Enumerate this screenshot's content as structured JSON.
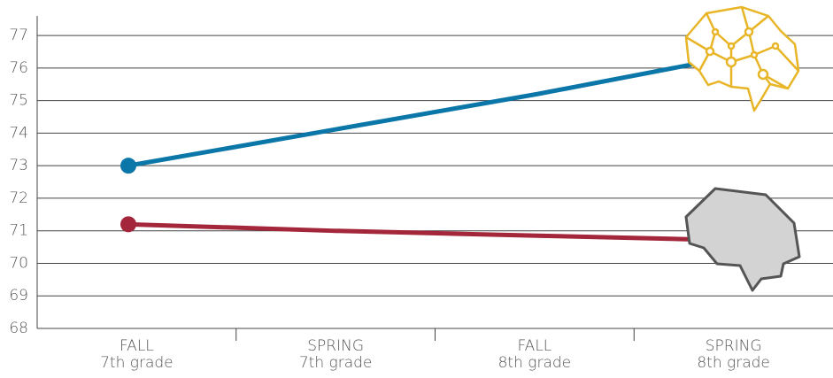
{
  "chart_data": {
    "type": "line",
    "categories": [
      [
        "FALL",
        "7th grade"
      ],
      [
        "SPRING",
        "7th grade"
      ],
      [
        "FALL",
        "8th grade"
      ],
      [
        "SPRING",
        "8th grade"
      ]
    ],
    "series": [
      {
        "color": "#0b76a8",
        "values": [
          73,
          74.1,
          75.2,
          76.4
        ]
      },
      {
        "color": "#a3263b",
        "values": [
          71.2,
          71.0,
          70.85,
          70.7
        ]
      }
    ],
    "ylim": [
      68,
      77.6
    ],
    "yticks": [
      68,
      69,
      70,
      71,
      72,
      73,
      74,
      75,
      76,
      77
    ],
    "grid": true
  }
}
